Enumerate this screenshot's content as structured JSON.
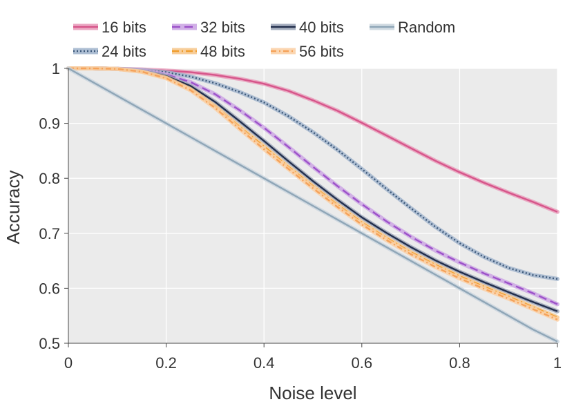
{
  "chart_data": {
    "type": "line",
    "title": "",
    "xlabel": "Noise level",
    "ylabel": "Accuracy",
    "xlim": [
      0,
      1
    ],
    "ylim": [
      0.5,
      1.0
    ],
    "grid": true,
    "legend_position": "top",
    "x_ticks": [
      0,
      0.2,
      0.4,
      0.6,
      0.8,
      1
    ],
    "x_tick_labels": [
      "0",
      "0.2",
      "0.4",
      "0.6",
      "0.8",
      "1"
    ],
    "y_ticks": [
      0.5,
      0.6,
      0.7,
      0.8,
      0.9,
      1
    ],
    "y_tick_labels": [
      "0.5",
      "0.6",
      "0.7",
      "0.8",
      "0.9",
      "1"
    ],
    "x": [
      0,
      0.05,
      0.1,
      0.15,
      0.2,
      0.25,
      0.3,
      0.35,
      0.4,
      0.45,
      0.5,
      0.55,
      0.6,
      0.65,
      0.7,
      0.75,
      0.8,
      0.85,
      0.9,
      0.95,
      1.0
    ],
    "series": [
      {
        "name": "16 bits",
        "color": "#d6558a",
        "band_color": "#e89ab9",
        "dash": "",
        "values": [
          1.0,
          1.0,
          0.999,
          0.998,
          0.996,
          0.993,
          0.988,
          0.981,
          0.972,
          0.959,
          0.942,
          0.923,
          0.901,
          0.878,
          0.855,
          0.832,
          0.811,
          0.792,
          0.774,
          0.757,
          0.739
        ]
      },
      {
        "name": "24 bits",
        "color": "#3b5778",
        "band_color": "#9fb3cc",
        "dash": "2,3",
        "values": [
          1.0,
          1.0,
          0.999,
          0.997,
          0.993,
          0.985,
          0.973,
          0.957,
          0.938,
          0.913,
          0.884,
          0.852,
          0.817,
          0.781,
          0.746,
          0.712,
          0.682,
          0.657,
          0.637,
          0.624,
          0.617
        ]
      },
      {
        "name": "32 bits",
        "color": "#9c51c9",
        "band_color": "#caa3e3",
        "dash": "12,6",
        "values": [
          1.0,
          1.0,
          0.999,
          0.996,
          0.989,
          0.975,
          0.953,
          0.924,
          0.892,
          0.857,
          0.821,
          0.786,
          0.753,
          0.722,
          0.694,
          0.669,
          0.647,
          0.627,
          0.609,
          0.591,
          0.571
        ]
      },
      {
        "name": "40 bits",
        "color": "#232f4d",
        "band_color": "#9aa3b6",
        "dash": "",
        "values": [
          1.0,
          1.0,
          0.999,
          0.995,
          0.986,
          0.968,
          0.939,
          0.904,
          0.868,
          0.831,
          0.795,
          0.761,
          0.729,
          0.701,
          0.675,
          0.651,
          0.63,
          0.611,
          0.593,
          0.575,
          0.558
        ]
      },
      {
        "name": "48 bits",
        "color": "#f09d2d",
        "band_color": "#f6c68a",
        "dash": "10,4,2,4",
        "values": [
          1.0,
          1.0,
          0.999,
          0.994,
          0.983,
          0.962,
          0.931,
          0.894,
          0.858,
          0.821,
          0.786,
          0.752,
          0.72,
          0.692,
          0.666,
          0.643,
          0.622,
          0.603,
          0.585,
          0.566,
          0.547
        ]
      },
      {
        "name": "56 bits",
        "color": "#f5a25a",
        "band_color": "#fbcfa4",
        "dash": "8,4,2,4",
        "values": [
          1.0,
          1.0,
          0.999,
          0.994,
          0.982,
          0.96,
          0.928,
          0.89,
          0.853,
          0.817,
          0.782,
          0.748,
          0.716,
          0.688,
          0.662,
          0.639,
          0.618,
          0.599,
          0.581,
          0.562,
          0.543
        ]
      },
      {
        "name": "Random",
        "color": "#8fa6b7",
        "band_color": "#c9d5de",
        "dash": "",
        "values": [
          1.0,
          0.975,
          0.95,
          0.925,
          0.9,
          0.875,
          0.85,
          0.825,
          0.8,
          0.775,
          0.75,
          0.725,
          0.7,
          0.675,
          0.65,
          0.625,
          0.6,
          0.575,
          0.55,
          0.525,
          0.503
        ]
      }
    ],
    "legend_order": [
      "16 bits",
      "32 bits",
      "40 bits",
      "Random",
      "24 bits",
      "48 bits",
      "56 bits"
    ]
  }
}
